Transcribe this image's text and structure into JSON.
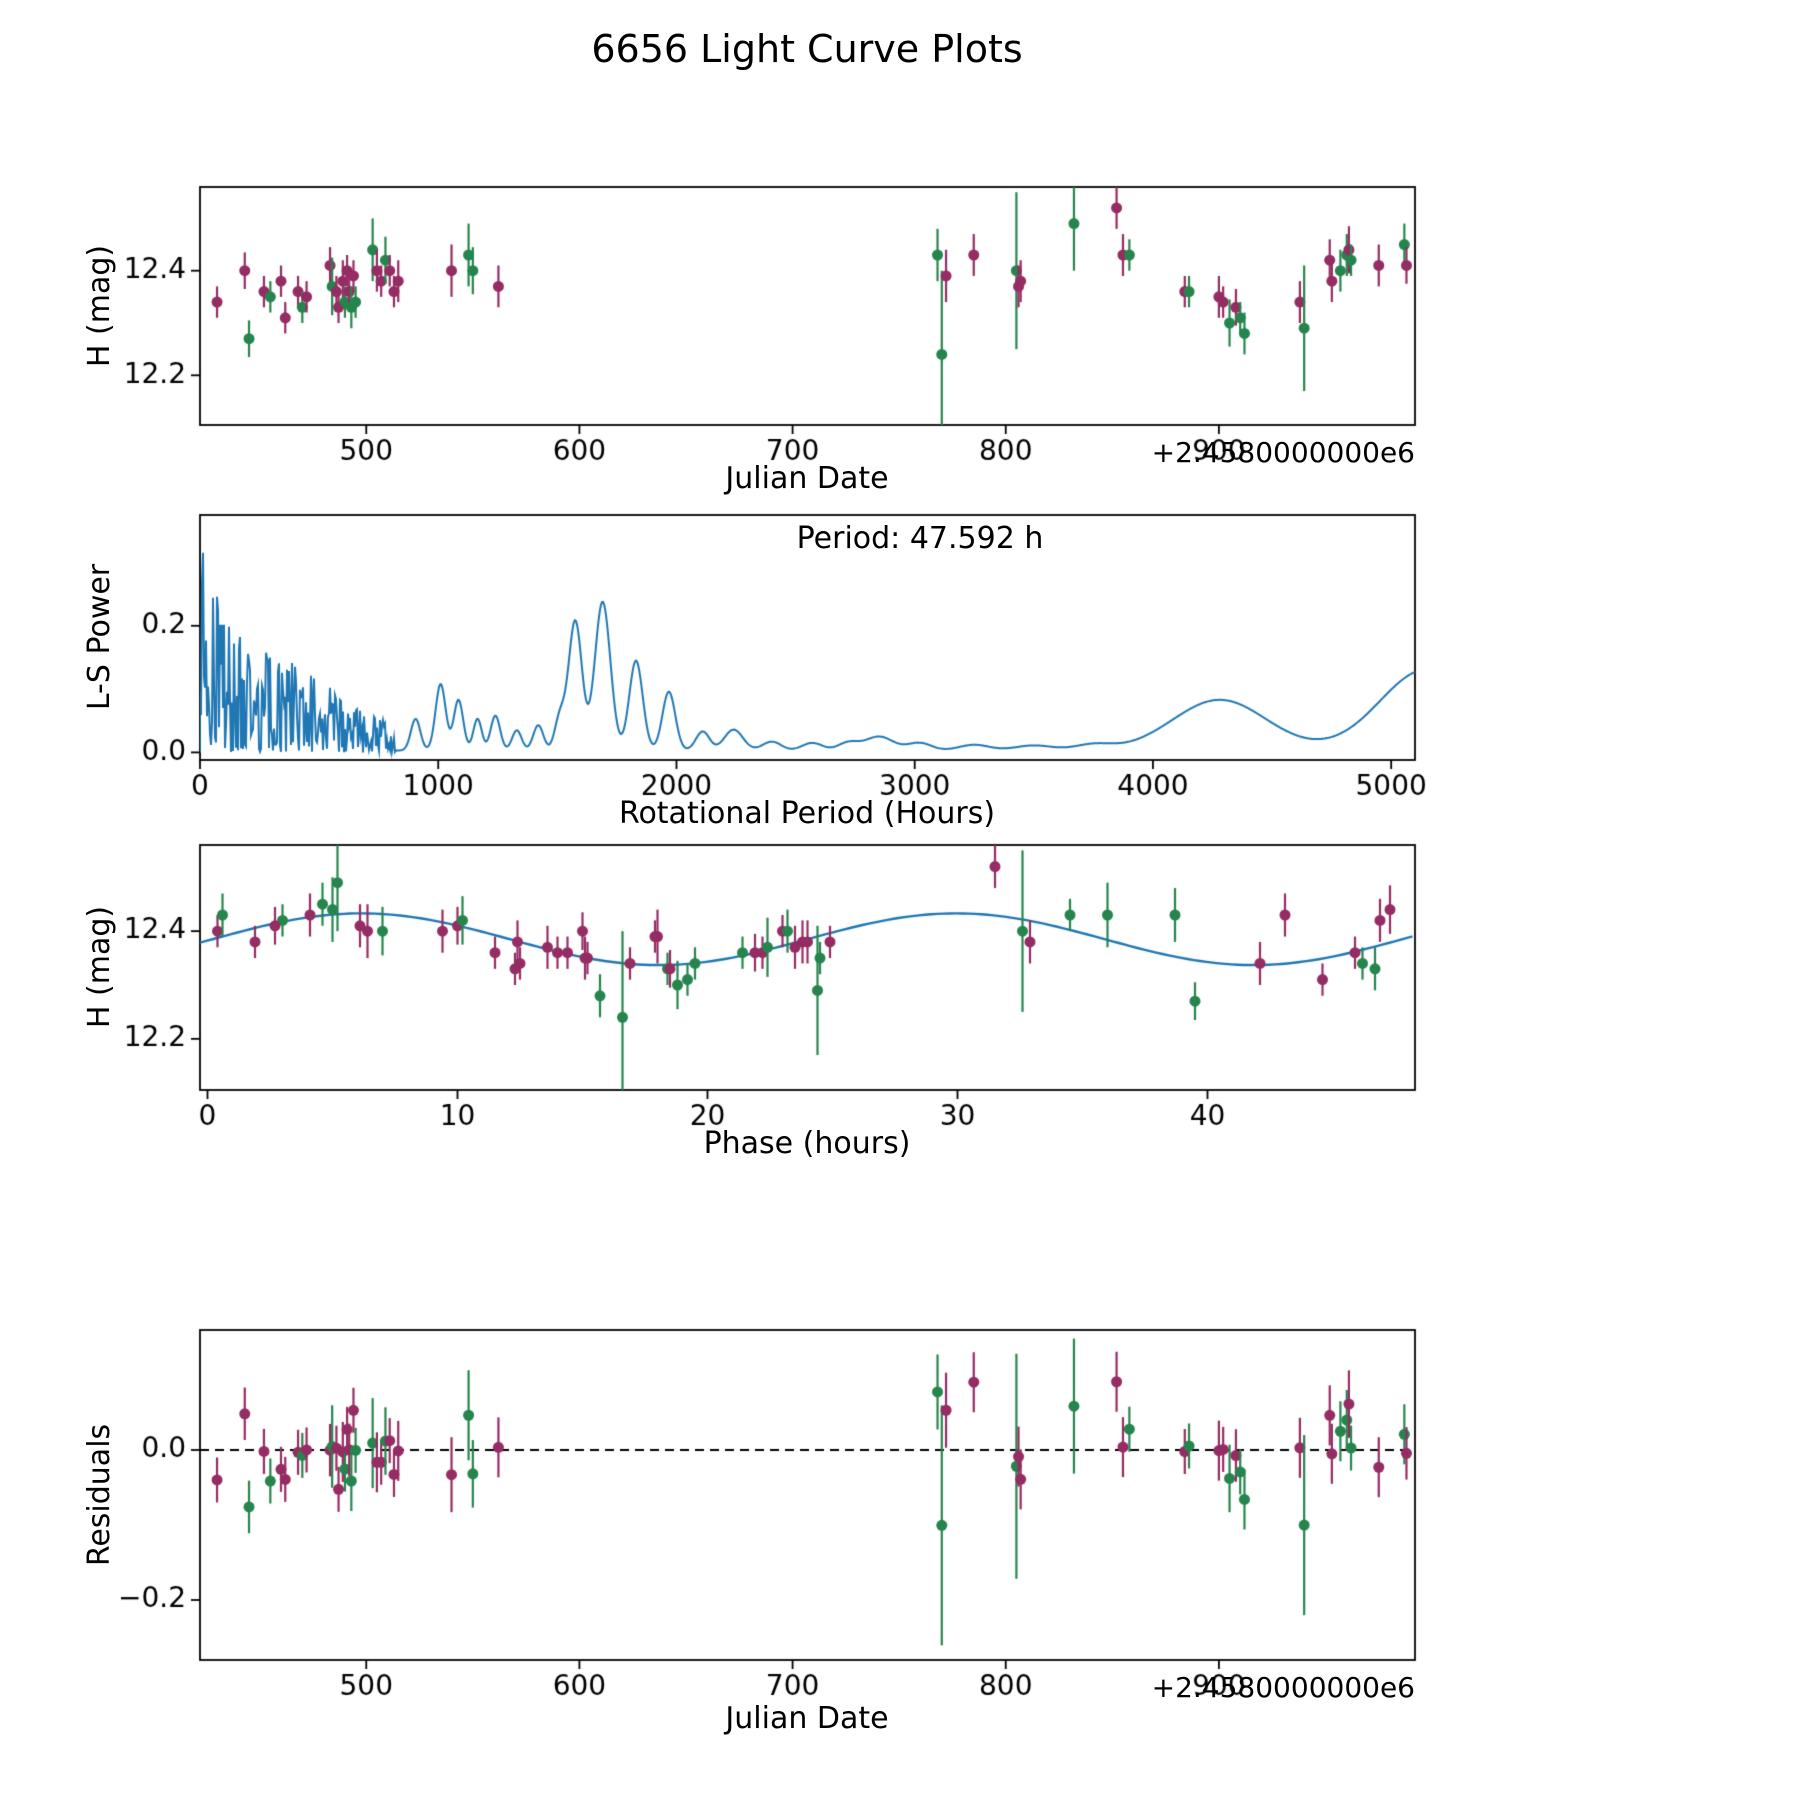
{
  "chart_data": {
    "title": "6656 Light Curve Plots",
    "colors": {
      "tracer_p": "#952c63",
      "tracer_g": "#26854c",
      "line_blue": "#1f77b4",
      "zero_line": "#000000"
    },
    "observations": {
      "columns": [
        "julian_date_minus_offset",
        "phase_hours",
        "h_mag",
        "h_err_mag",
        "color_key"
      ],
      "rows": [
        [
          430,
          12.5,
          12.34,
          0.03,
          "p"
        ],
        [
          443,
          15.0,
          12.4,
          0.035,
          "p"
        ],
        [
          445,
          39.5,
          12.27,
          0.035,
          "g"
        ],
        [
          452,
          14.0,
          12.36,
          0.03,
          "p"
        ],
        [
          455,
          24.5,
          12.35,
          0.03,
          "g"
        ],
        [
          460,
          1.9,
          12.38,
          0.03,
          "p"
        ],
        [
          462,
          44.6,
          12.31,
          0.03,
          "p"
        ],
        [
          468,
          22.2,
          12.36,
          0.03,
          "p"
        ],
        [
          470,
          18.4,
          12.33,
          0.03,
          "g"
        ],
        [
          472,
          15.2,
          12.35,
          0.03,
          "p"
        ],
        [
          483,
          10.0,
          12.41,
          0.035,
          "p"
        ],
        [
          484,
          22.4,
          12.37,
          0.055,
          "g"
        ],
        [
          486,
          14.4,
          12.36,
          0.03,
          "p"
        ],
        [
          487,
          12.3,
          12.33,
          0.03,
          "p"
        ],
        [
          489,
          23.8,
          12.38,
          0.04,
          "p"
        ],
        [
          490,
          46.2,
          12.34,
          0.03,
          "g"
        ],
        [
          491,
          23.0,
          12.4,
          0.03,
          "p"
        ],
        [
          492,
          21.9,
          12.36,
          0.035,
          "p"
        ],
        [
          493,
          46.7,
          12.33,
          0.04,
          "g"
        ],
        [
          494,
          17.9,
          12.39,
          0.03,
          "p"
        ],
        [
          495,
          19.5,
          12.34,
          0.03,
          "g"
        ],
        [
          503,
          5.0,
          12.44,
          0.06,
          "g"
        ],
        [
          505,
          9.4,
          12.4,
          0.04,
          "p"
        ],
        [
          507,
          24.9,
          12.38,
          0.03,
          "p"
        ],
        [
          509,
          10.2,
          12.42,
          0.045,
          "g"
        ],
        [
          511,
          0.4,
          12.4,
          0.03,
          "p"
        ],
        [
          513,
          11.5,
          12.36,
          0.03,
          "p"
        ],
        [
          515,
          12.4,
          12.38,
          0.04,
          "p"
        ],
        [
          540,
          6.4,
          12.4,
          0.05,
          "p"
        ],
        [
          548,
          36.0,
          12.43,
          0.06,
          "g"
        ],
        [
          550,
          7.0,
          12.4,
          0.045,
          "g"
        ],
        [
          562,
          13.6,
          12.37,
          0.04,
          "p"
        ],
        [
          768,
          38.7,
          12.43,
          0.05,
          "g"
        ],
        [
          770,
          16.6,
          12.24,
          0.16,
          "g"
        ],
        [
          772,
          18.0,
          12.39,
          0.05,
          "p"
        ],
        [
          785,
          43.1,
          12.43,
          0.04,
          "p"
        ],
        [
          805,
          32.6,
          12.4,
          0.15,
          "g"
        ],
        [
          806,
          23.5,
          12.37,
          0.04,
          "p"
        ],
        [
          807,
          32.9,
          12.38,
          0.04,
          "p"
        ],
        [
          832,
          5.2,
          12.49,
          0.09,
          "g"
        ],
        [
          852,
          31.5,
          12.52,
          0.04,
          "p"
        ],
        [
          855,
          4.1,
          12.43,
          0.04,
          "p"
        ],
        [
          858,
          34.5,
          12.43,
          0.03,
          "g"
        ],
        [
          884,
          45.9,
          12.36,
          0.03,
          "p"
        ],
        [
          886,
          21.4,
          12.36,
          0.03,
          "g"
        ],
        [
          900,
          15.1,
          12.35,
          0.04,
          "p"
        ],
        [
          902,
          16.9,
          12.34,
          0.03,
          "p"
        ],
        [
          905,
          18.8,
          12.3,
          0.045,
          "g"
        ],
        [
          908,
          18.5,
          12.33,
          0.035,
          "p"
        ],
        [
          910,
          19.2,
          12.31,
          0.03,
          "g"
        ],
        [
          912,
          15.7,
          12.28,
          0.04,
          "g"
        ],
        [
          938,
          42.1,
          12.34,
          0.04,
          "p"
        ],
        [
          940,
          24.4,
          12.29,
          0.12,
          "g"
        ],
        [
          952,
          46.9,
          12.42,
          0.04,
          "p"
        ],
        [
          953,
          24.0,
          12.38,
          0.04,
          "p"
        ],
        [
          957,
          23.2,
          12.4,
          0.04,
          "g"
        ],
        [
          960,
          0.6,
          12.43,
          0.04,
          "g"
        ],
        [
          961,
          47.3,
          12.44,
          0.045,
          "p"
        ],
        [
          962,
          3.0,
          12.42,
          0.03,
          "g"
        ],
        [
          975,
          6.1,
          12.41,
          0.04,
          "p"
        ],
        [
          987,
          4.6,
          12.45,
          0.04,
          "g"
        ],
        [
          988,
          2.7,
          12.41,
          0.035,
          "p"
        ]
      ]
    },
    "panels": [
      {
        "id": "light_curve_jd",
        "type": "scatter",
        "xlabel": "Julian Date",
        "ylabel": "H (mag)",
        "x_offset_label": "+2.4580000000e6",
        "xlim": [
          422,
          992
        ],
        "ylim": [
          12.105,
          12.56
        ],
        "xticks": [
          500,
          600,
          700,
          800,
          900
        ],
        "xtick_labels": [
          "500",
          "600",
          "700",
          "800",
          "900"
        ],
        "yticks": [
          12.2,
          12.4
        ],
        "ytick_labels": [
          "12.2",
          "12.4"
        ]
      },
      {
        "id": "ls_periodogram",
        "type": "line",
        "xlabel": "Rotational Period (Hours)",
        "ylabel": "L-S Power",
        "annotation": "Period: 47.592 h",
        "best_period_hours": 47.592,
        "xlim": [
          0,
          5100
        ],
        "ylim": [
          -0.012,
          0.375
        ],
        "xticks": [
          0,
          1000,
          2000,
          3000,
          4000,
          5000
        ],
        "xtick_labels": [
          "0",
          "1000",
          "2000",
          "3000",
          "4000",
          "5000"
        ],
        "yticks": [
          0.0,
          0.2
        ],
        "ytick_labels": [
          "0.0",
          "0.2"
        ],
        "baseline": 0.003,
        "noise_region": {
          "xmax": 820,
          "envelope": [
            [
              0,
              0.28
            ],
            [
              25,
              0.37
            ],
            [
              45,
              0.3
            ],
            [
              80,
              0.24
            ],
            [
              120,
              0.21
            ],
            [
              170,
              0.185
            ],
            [
              220,
              0.16
            ],
            [
              280,
              0.165
            ],
            [
              340,
              0.14
            ],
            [
              400,
              0.15
            ],
            [
              450,
              0.12
            ],
            [
              500,
              0.13
            ],
            [
              550,
              0.1
            ],
            [
              600,
              0.085
            ],
            [
              650,
              0.07
            ],
            [
              700,
              0.065
            ],
            [
              760,
              0.055
            ],
            [
              820,
              0.045
            ]
          ]
        },
        "peaks": [
          [
            905,
            28,
            0.05
          ],
          [
            1010,
            30,
            0.105
          ],
          [
            1085,
            28,
            0.08
          ],
          [
            1165,
            25,
            0.05
          ],
          [
            1240,
            28,
            0.055
          ],
          [
            1330,
            28,
            0.032
          ],
          [
            1420,
            30,
            0.04
          ],
          [
            1510,
            30,
            0.05
          ],
          [
            1575,
            40,
            0.205
          ],
          [
            1690,
            46,
            0.235
          ],
          [
            1830,
            40,
            0.142
          ],
          [
            1968,
            38,
            0.093
          ],
          [
            2110,
            40,
            0.03
          ],
          [
            2240,
            55,
            0.033
          ],
          [
            2400,
            55,
            0.014
          ],
          [
            2570,
            60,
            0.012
          ],
          [
            2720,
            60,
            0.012
          ],
          [
            2850,
            85,
            0.022
          ],
          [
            3020,
            70,
            0.012
          ],
          [
            3250,
            90,
            0.009
          ],
          [
            3500,
            110,
            0.008
          ],
          [
            3750,
            110,
            0.009
          ],
          [
            4280,
            280,
            0.08
          ],
          [
            5150,
            280,
            0.128
          ]
        ]
      },
      {
        "id": "phase_curve",
        "type": "scatter",
        "xlabel": "Phase (hours)",
        "ylabel": "H (mag)",
        "xlim": [
          -0.3,
          48.3
        ],
        "ylim": [
          12.105,
          12.56
        ],
        "xticks": [
          0,
          10,
          20,
          30,
          40
        ],
        "xtick_labels": [
          "0",
          "10",
          "20",
          "30",
          "40"
        ],
        "yticks": [
          12.2,
          12.4
        ],
        "ytick_labels": [
          "12.2",
          "12.4"
        ],
        "fit": {
          "mean": 12.385,
          "amplitude": 0.048,
          "period_hours": 23.796,
          "phase_shift_hours": 0.2
        }
      },
      {
        "id": "residuals_jd",
        "type": "scatter",
        "xlabel": "Julian Date",
        "ylabel": "Residuals",
        "x_offset_label": "+2.4580000000e6",
        "xlim": [
          422,
          992
        ],
        "ylim": [
          -0.28,
          0.16
        ],
        "xticks": [
          500,
          600,
          700,
          800,
          900
        ],
        "xtick_labels": [
          "500",
          "600",
          "700",
          "800",
          "900"
        ],
        "yticks": [
          -0.2,
          0.0
        ],
        "ytick_labels": [
          "−0.2",
          "0.0"
        ],
        "zero_line": true
      }
    ]
  }
}
